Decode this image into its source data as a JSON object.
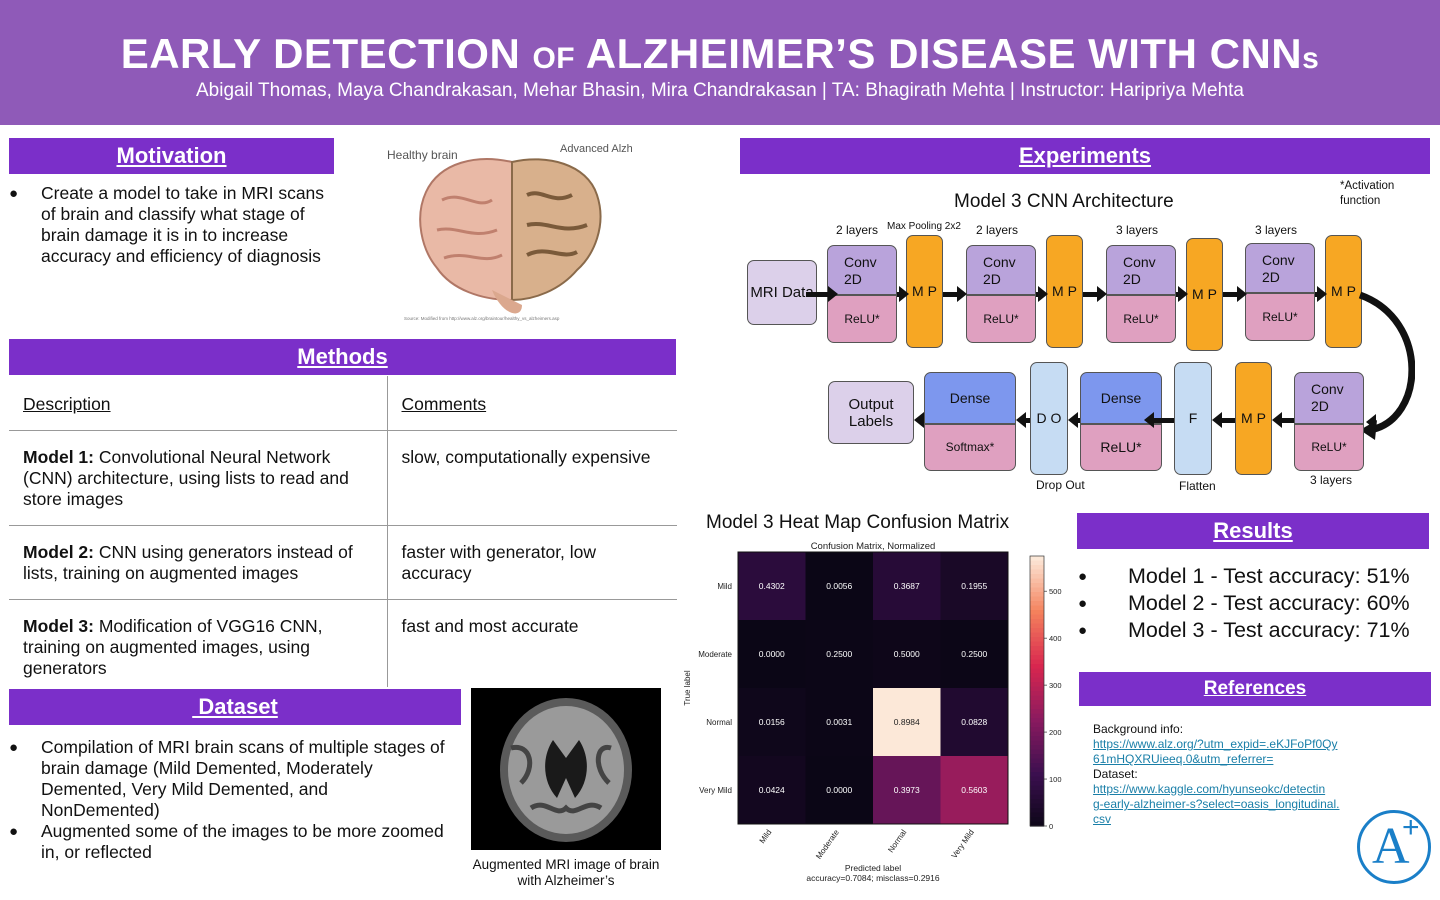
{
  "header": {
    "title_a": "EARLY DETECTION",
    "title_of": "OF",
    "title_b": "ALZHEIMER’S DISEASE WITH CNN",
    "title_s": "s",
    "authors": "Abigail Thomas, Maya Chandrakasan, Mehar Bhasin, Mira Chandrakasan | TA: Bhagirath Mehta | Instructor: Haripriya Mehta"
  },
  "motivation": {
    "heading": "Motivation",
    "bullet": "Create a model to take in MRI scans of brain and classify what stage of brain damage it is in to increase accuracy and efficiency of diagnosis",
    "brain_healthy": "Healthy brain",
    "brain_advanced": "Advanced Alzheimer’s",
    "brain_source": "Source: Modified from http://www.alz.org/braintour/healthy_vs_alzheimers.asp"
  },
  "methods": {
    "heading": "Methods",
    "col1": "Description",
    "col2": "Comments",
    "rows": [
      {
        "label": "Model 1:",
        "desc": " Convolutional Neural Network (CNN) architecture, using lists to read and store images",
        "comment": "slow, computationally expensive"
      },
      {
        "label": "Model 2:",
        "desc": " CNN using generators instead of lists, training on augmented images",
        "comment": "faster with generator, low accuracy"
      },
      {
        "label": "Model 3:",
        "desc": " Modification of VGG16 CNN, training on augmented images, using generators",
        "comment": "fast and most accurate"
      }
    ]
  },
  "dataset": {
    "heading": " Dataset",
    "bullets": [
      "Compilation of MRI brain scans of multiple stages of brain damage (Mild Demented, Moderately Demented, Very Mild Demented, and NonDemented)",
      "Augmented some of the images to be more zoomed in, or reflected"
    ],
    "caption": "Augmented MRI image of brain with Alzheimer’s"
  },
  "experiments": {
    "heading": "Experiments",
    "arch_title": "Model 3 CNN Architecture",
    "activation_note": "*Activation function",
    "labels": {
      "two_layers": "2 layers",
      "max_pool": "Max Pooling 2x2",
      "three_layers": "3 layers",
      "drop_out": "Drop Out",
      "flatten": "Flatten"
    },
    "boxes": {
      "mri": "MRI Data",
      "conv": "Conv 2D",
      "relu": "ReLU*",
      "mp": "M P",
      "dense": "Dense",
      "softmax": "Softmax*",
      "do": "D O",
      "f": "F",
      "output": "Output Labels"
    }
  },
  "heatmap": {
    "title": "Model 3 Heat Map Confusion Matrix"
  },
  "chart_data": {
    "type": "heatmap",
    "title": "Confusion Matrix, Normalized",
    "rows": [
      "Mild",
      "Moderate",
      "Normal",
      "Very Mild"
    ],
    "cols": [
      "Mild",
      "Moderate",
      "Normal",
      "Very Mild"
    ],
    "values": [
      [
        0.4302,
        0.0056,
        0.3687,
        0.1955
      ],
      [
        0.0,
        0.25,
        0.5,
        0.25
      ],
      [
        0.0156,
        0.0031,
        0.8984,
        0.0828
      ],
      [
        0.0424,
        0.0,
        0.3973,
        0.5603
      ]
    ],
    "counts": [
      [
        77,
        1,
        66,
        35
      ],
      [
        0,
        3,
        6,
        3
      ],
      [
        10,
        2,
        575,
        53
      ],
      [
        19,
        0,
        178,
        251
      ]
    ],
    "ylabel": "True label",
    "xlabel": "Predicted label",
    "footer": "accuracy=0.7084; misclass=0.2916",
    "colorbar_ticks": [
      "500",
      "400",
      "300",
      "200",
      "100",
      "0"
    ],
    "colorbar_range": [
      0,
      575
    ],
    "colormap_colors": [
      "#0b0616",
      "#3b0f4f",
      "#8a1a5f",
      "#d8264f",
      "#f4815c",
      "#fce8d8"
    ]
  },
  "results": {
    "heading": "Results",
    "bullets": [
      "Model 1 - Test accuracy: 51%",
      "Model 2 - Test accuracy: 60%",
      "Model 3 - Test accuracy: 71%"
    ]
  },
  "references": {
    "heading": "References",
    "bg_label": "Background info:",
    "bg_link_1": "https://www.alz.org/?utm_expid=.eKJFoPf0Qy",
    "bg_link_2": "61mHQXRUieeq.0&utm_referrer=",
    "ds_label": "Dataset:",
    "ds_link_1": "https://www.kaggle.com/hyunseokc/detectin",
    "ds_link_2": "g-early-alzheimer-s?select=oasis_longitudinal.",
    "ds_link_3": "csv"
  },
  "logo": {
    "text": "A",
    "plus": "+"
  },
  "colors": {
    "purple_header": "#8f5ab8",
    "purple_bar": "#7b2fc9",
    "link": "#1a7fa8"
  }
}
